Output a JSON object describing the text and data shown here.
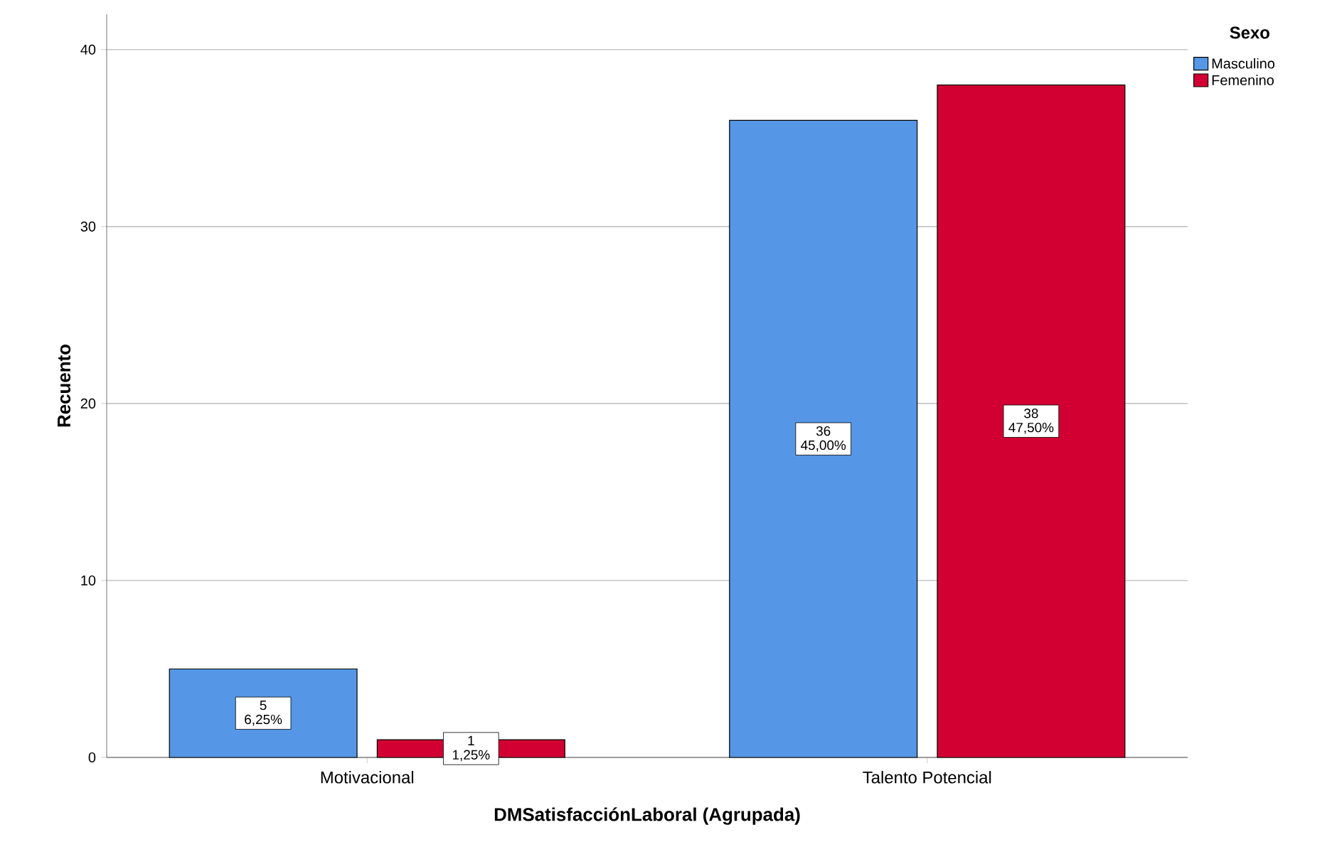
{
  "chart_data": {
    "type": "bar",
    "xlabel": "DMSatisfacciónLaboral (Agrupada)",
    "ylabel": "Recuento",
    "legend_title": "Sexo",
    "categories": [
      "Motivacional",
      "Talento Potencial"
    ],
    "series": [
      {
        "name": "Masculino",
        "color": "#5597e6",
        "values": [
          5,
          36
        ],
        "value_labels": [
          "5 6,25%",
          "36 45,00%"
        ]
      },
      {
        "name": "Femenino",
        "color": "#d20032",
        "values": [
          1,
          38
        ],
        "value_labels": [
          "1 1,25%",
          "38 47,50%"
        ]
      }
    ],
    "ylim": [
      0,
      42
    ],
    "yticks": [
      0,
      10,
      20,
      30,
      40
    ],
    "grid": "y",
    "legend": "top right"
  }
}
